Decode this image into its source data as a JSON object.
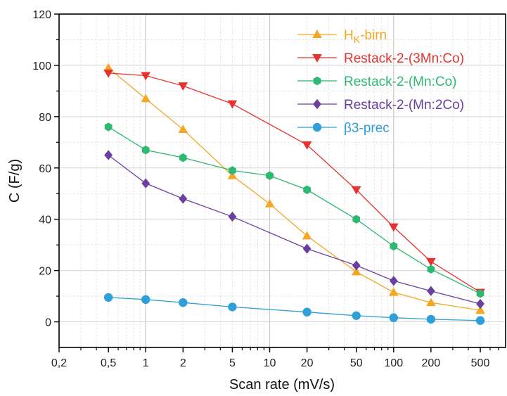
{
  "chart_data": {
    "type": "line",
    "xscale": "log",
    "xlabel": "Scan rate (mV/s)",
    "ylabel": "C (F/g)",
    "xlim": [
      0.2,
      800
    ],
    "ylim": [
      -10,
      120
    ],
    "xticks": [
      0.2,
      0.5,
      1,
      2,
      5,
      10,
      20,
      50,
      100,
      200,
      500
    ],
    "xtick_labels": [
      "0,2",
      "0,5",
      "1",
      "2",
      "5",
      "10",
      "20",
      "50",
      "100",
      "200",
      "500"
    ],
    "yticks": [
      0,
      20,
      40,
      60,
      80,
      100,
      120
    ],
    "ytick_labels": [
      "0",
      "20",
      "40",
      "60",
      "80",
      "100",
      "120"
    ],
    "grid": true,
    "legend_position": "top-right",
    "x": [
      0.5,
      1,
      2,
      5,
      10,
      20,
      50,
      100,
      200,
      500
    ],
    "series": [
      {
        "name": "H",
        "name_sub": "K",
        "name_rest": "-birn",
        "color": "#f5a623",
        "marker": "triangle-up",
        "values": [
          99,
          87,
          75,
          57,
          46,
          33.5,
          19.5,
          11.5,
          7.5,
          4.5
        ]
      },
      {
        "name": "Restack-2-(3Mn:Co)",
        "color": "#e8322e",
        "marker": "triangle-down",
        "values": [
          97,
          96,
          92,
          85,
          null,
          69,
          51.5,
          37,
          23.5,
          11.5
        ]
      },
      {
        "name": "Restack-2-(Mn:Co)",
        "color": "#2eb872",
        "marker": "hexagon",
        "values": [
          76,
          67,
          64,
          59,
          57,
          51.5,
          40,
          29.5,
          20.5,
          11
        ]
      },
      {
        "name": "Restack-2-(Mn:2Co)",
        "color": "#6a3fa0",
        "marker": "diamond",
        "values": [
          65,
          54,
          48,
          41,
          null,
          28.5,
          22,
          16,
          12,
          7
        ]
      },
      {
        "name": "β3-prec",
        "color": "#2f9fd8",
        "marker": "circle",
        "values": [
          9.5,
          8.7,
          7.5,
          5.8,
          null,
          3.8,
          2.4,
          1.6,
          1,
          0.5
        ]
      }
    ]
  }
}
